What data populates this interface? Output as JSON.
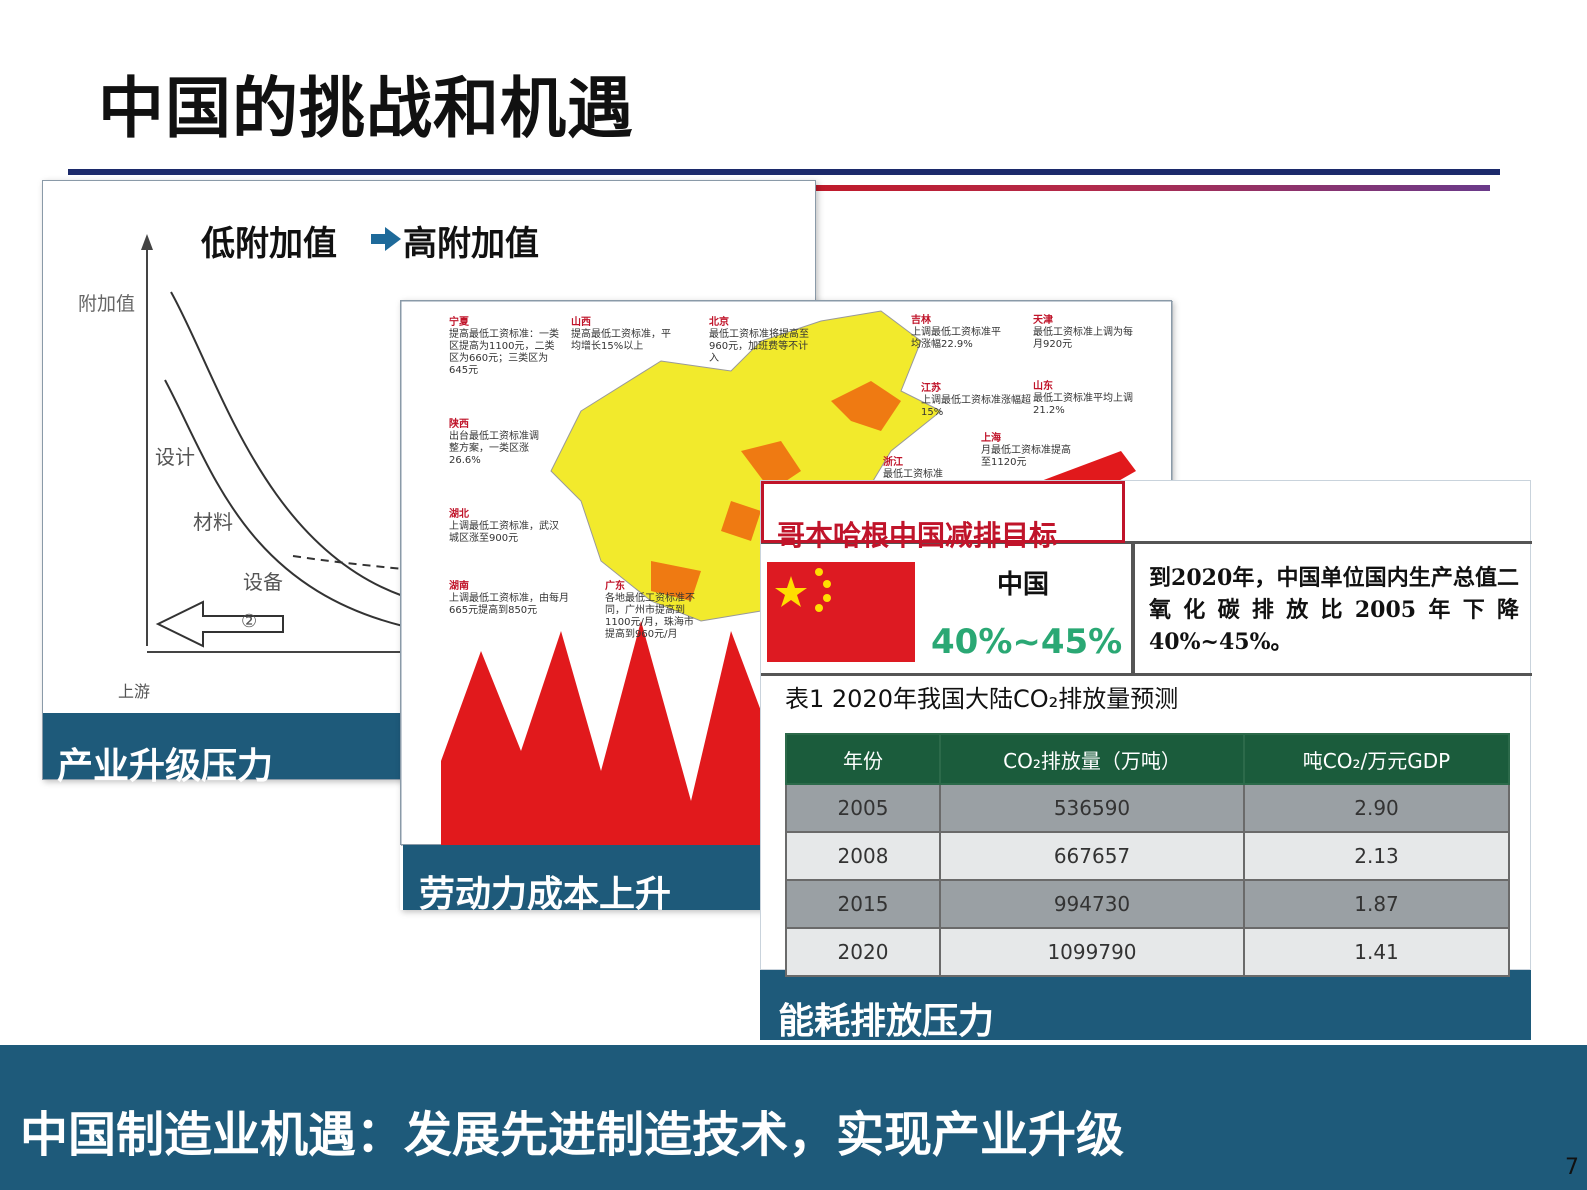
{
  "slide": {
    "title": "中国的挑战和机遇",
    "page_number": "7"
  },
  "panel_industry": {
    "heading_from": "低附加值",
    "heading_to": "高附加值",
    "y_axis_label": "附加值",
    "curve_labels": [
      "设计",
      "材料",
      "设备"
    ],
    "arrow_label": "②",
    "x_axis_label": "上游",
    "caption": "产业升级压力"
  },
  "panel_labor": {
    "caption": "劳动力成本上升",
    "notes": [
      {
        "region": "宁夏",
        "text": "提高最低工资标准：一类区提高为1100元，二类区为660元；三类区为645元"
      },
      {
        "region": "山西",
        "text": "提高最低工资标准，平均增长15%以上"
      },
      {
        "region": "北京",
        "text": "最低工资标准将提高至960元，加班费等不计入"
      },
      {
        "region": "吉林",
        "text": "上调最低工资标准平均涨幅22.9%"
      },
      {
        "region": "天津",
        "text": "最低工资标准上调为每月920元"
      },
      {
        "region": "江苏",
        "text": "上调最低工资标准涨幅超15%"
      },
      {
        "region": "山东",
        "text": "最低工资标准平均上调21.2%"
      },
      {
        "region": "陕西",
        "text": "出台最低工资标准调整方案，一类区涨26.6%"
      },
      {
        "region": "上海",
        "text": "月最低工资标准提高至1120元"
      },
      {
        "region": "浙江",
        "text": "最低工资标准"
      },
      {
        "region": "湖北",
        "text": "上调最低工资标准，武汉城区涨至900元"
      },
      {
        "region": "湖南",
        "text": "上调最低工资标准，由每月665元提高到850元"
      },
      {
        "region": "广东",
        "text": "各地最低工资标准不同，广州市提高到1100元/月，珠海市提高到960元/月"
      }
    ]
  },
  "panel_emission": {
    "heading": "哥本哈根中国减排目标",
    "country": "中国",
    "target": "40%~45%",
    "statement": "到2020年，中国单位国内生产总值二氧化碳排放比2005年下降40%~45%。",
    "table_caption": "表1 2020年我国大陆CO₂排放量预测",
    "table": {
      "headers": [
        "年份",
        "CO₂排放量（万吨）",
        "吨CO₂/万元GDP"
      ],
      "rows": [
        [
          "2005",
          "536590",
          "2.90"
        ],
        [
          "2008",
          "667657",
          "2.13"
        ],
        [
          "2015",
          "994730",
          "1.87"
        ],
        [
          "2020",
          "1099790",
          "1.41"
        ]
      ]
    },
    "caption": "能耗排放压力"
  },
  "footer": {
    "text": "中国制造业机遇：发展先进制造技术，实现产业升级"
  },
  "colors": {
    "title_rule": "#1c2a6b",
    "caption_band": "#1e5a7a",
    "accent_red": "#c0142a",
    "target_green": "#2aa874",
    "table_header": "#1b5c3c"
  }
}
